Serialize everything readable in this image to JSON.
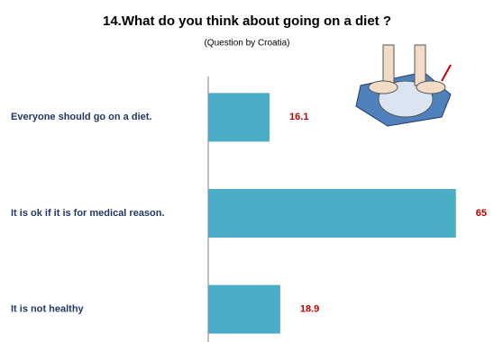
{
  "chart_data": {
    "type": "hbar",
    "title": "14.What do you think about going on a diet ?",
    "subtitle": "(Question by Croatia)",
    "categories": [
      "Everyone should go on a diet.",
      "It is ok if it is for medical reason.",
      "It is not healthy"
    ],
    "values": [
      16.1,
      65,
      18.9
    ],
    "color": "#4bacc6",
    "label_color": "#c00000",
    "xlim": [
      0,
      75
    ],
    "grid": false
  }
}
